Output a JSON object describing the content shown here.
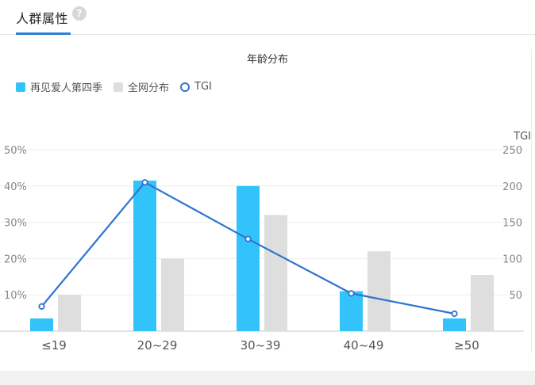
{
  "tabs": {
    "active_label": "人群属性",
    "help_glyph": "?"
  },
  "chart_data": {
    "type": "bar",
    "title": "年龄分布",
    "categories": [
      "≤19",
      "20~29",
      "30~39",
      "40~49",
      "≥50"
    ],
    "series": [
      {
        "name": "再见爱人第四季",
        "type": "bar",
        "axis": "left",
        "color": "#33c3fb",
        "values": [
          3.5,
          41.5,
          40,
          11,
          3.5
        ]
      },
      {
        "name": "全网分布",
        "type": "bar",
        "axis": "left",
        "color": "#dedede",
        "values": [
          10,
          20,
          32,
          22,
          15.5
        ]
      },
      {
        "name": "TGI",
        "type": "line",
        "axis": "right",
        "color": "#2f74d0",
        "values": [
          34,
          205,
          127,
          52,
          24
        ]
      }
    ],
    "y_left": {
      "min": 0,
      "max": 50,
      "ticks": [
        "10%",
        "20%",
        "30%",
        "40%",
        "50%"
      ],
      "tick_values": [
        10,
        20,
        30,
        40,
        50
      ]
    },
    "y_right": {
      "label": "TGI",
      "min": 0,
      "max": 250,
      "ticks": [
        "50",
        "100",
        "150",
        "200",
        "250"
      ],
      "tick_values": [
        50,
        100,
        150,
        200,
        250
      ]
    },
    "legend_position": "top-left",
    "grid": true
  }
}
